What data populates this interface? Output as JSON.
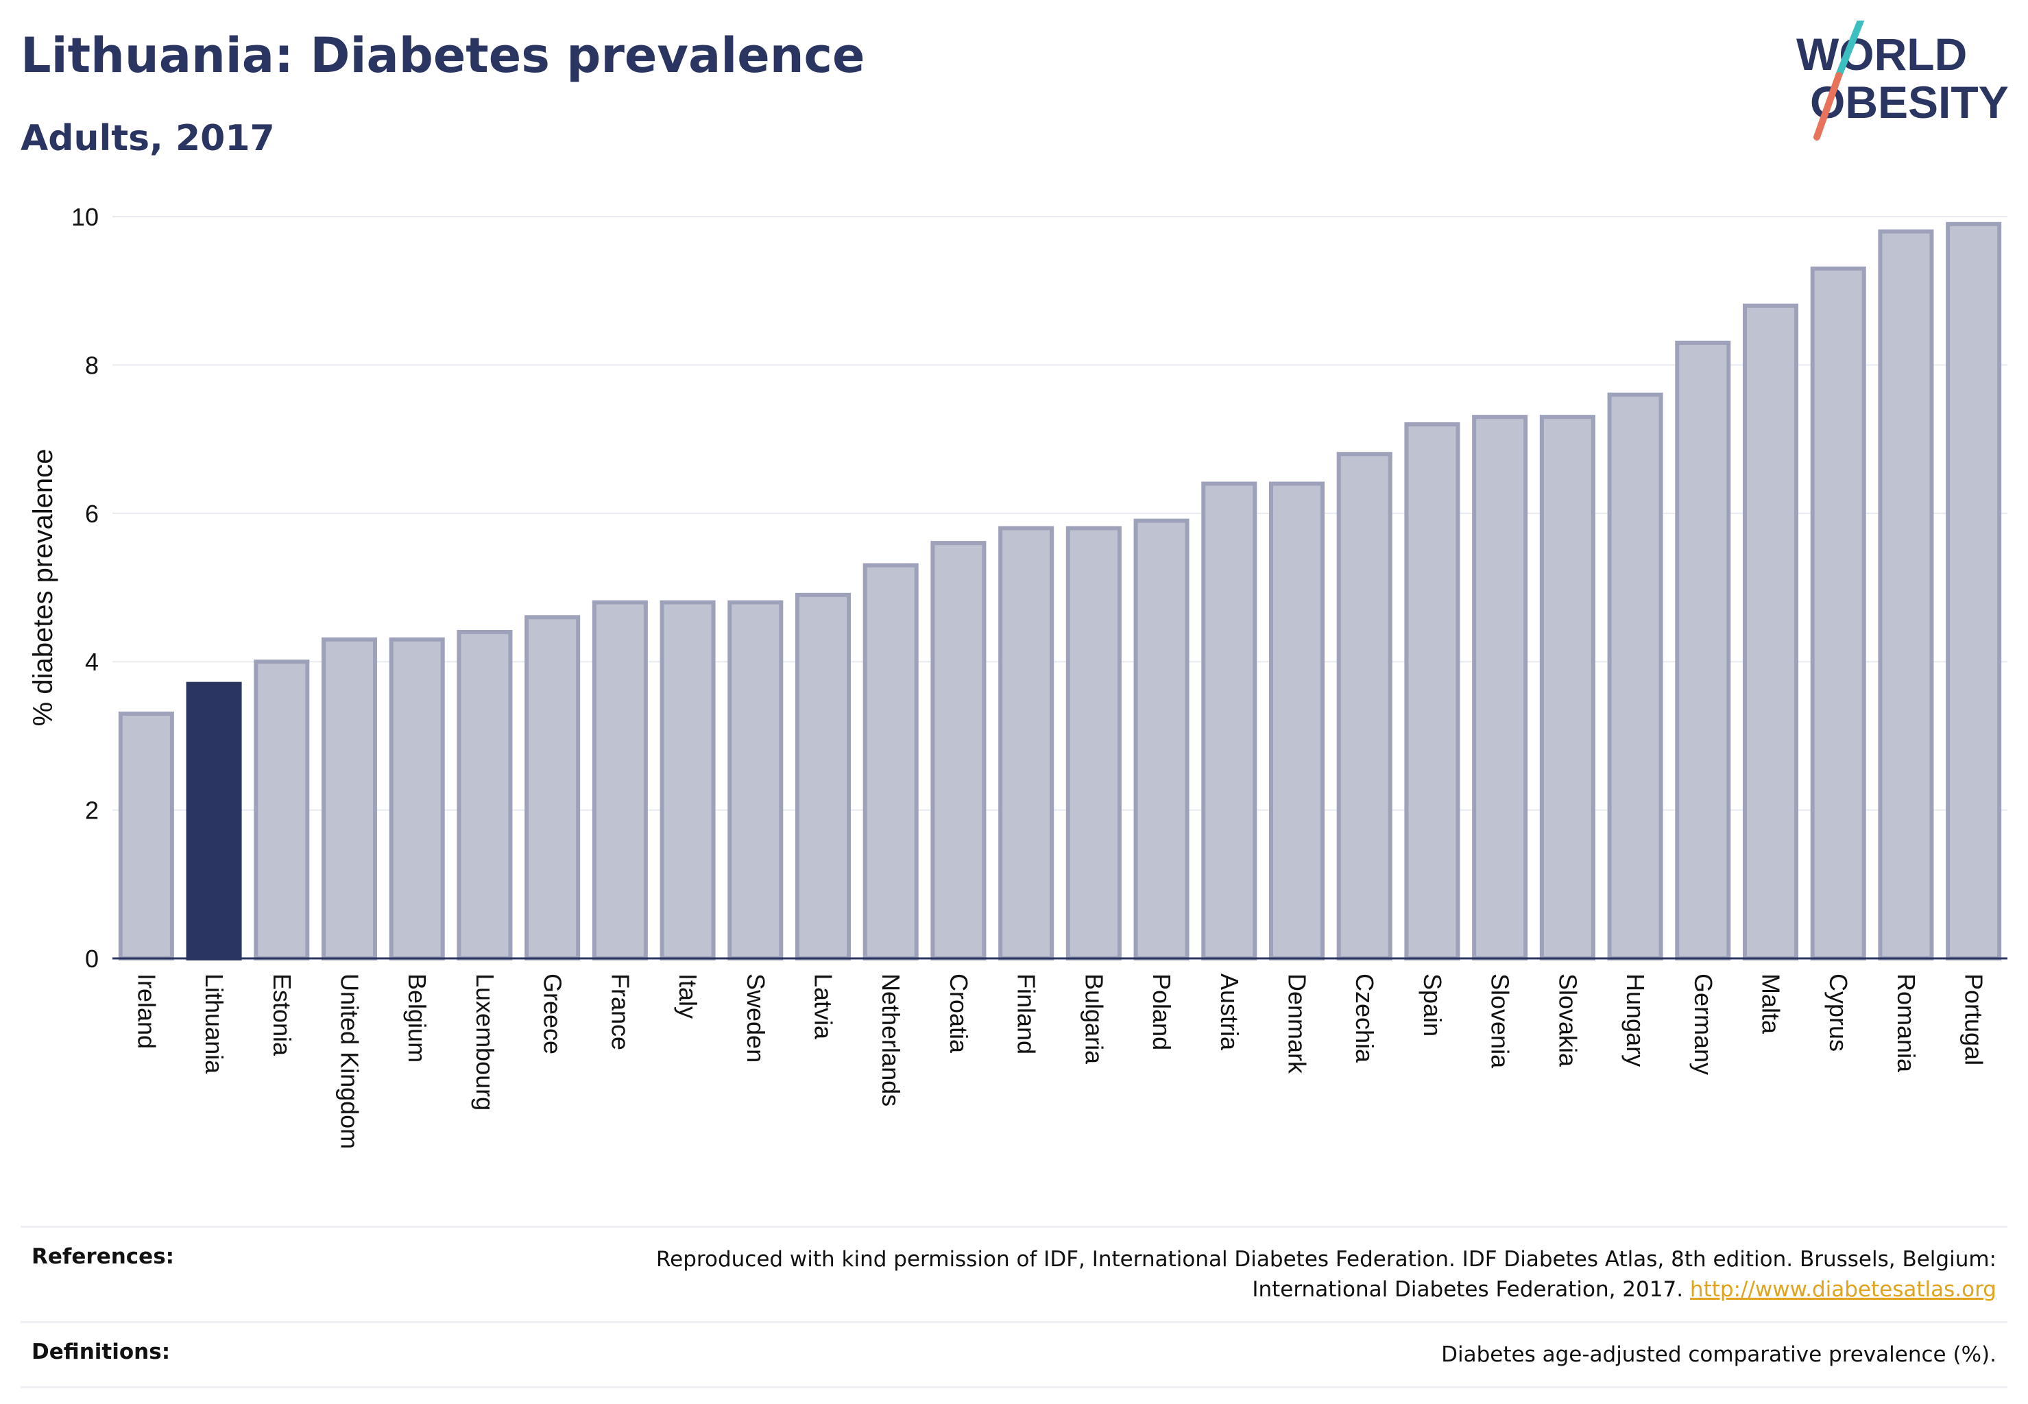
{
  "header": {
    "title": "Lithuania: Diabetes prevalence",
    "subtitle": "Adults, 2017"
  },
  "logo": {
    "line1": "WORLD",
    "line2": "OBESITY",
    "colors": {
      "text": "#2b3561",
      "slash_teal": "#3bbfbf",
      "slash_coral": "#e8735a"
    }
  },
  "chart_data": {
    "type": "bar",
    "ylabel": "% diabetes prevalence",
    "xlabel": "",
    "ylim": [
      0,
      10
    ],
    "yticks": [
      0,
      2,
      4,
      6,
      8,
      10
    ],
    "grid": true,
    "highlight": "Lithuania",
    "colors": {
      "bar": "#bfc2d0",
      "bar_edge": "#9da2ba",
      "highlight": "#2b3561",
      "axis": "#2b3561",
      "grid": "#e8eaf0"
    },
    "categories": [
      "Ireland",
      "Lithuania",
      "Estonia",
      "United Kingdom",
      "Belgium",
      "Luxembourg",
      "Greece",
      "France",
      "Italy",
      "Sweden",
      "Latvia",
      "Netherlands",
      "Croatia",
      "Finland",
      "Bulgaria",
      "Poland",
      "Austria",
      "Denmark",
      "Czechia",
      "Spain",
      "Slovenia",
      "Slovakia",
      "Hungary",
      "Germany",
      "Malta",
      "Cyprus",
      "Romania",
      "Portugal"
    ],
    "values": [
      3.3,
      3.7,
      4.0,
      4.3,
      4.3,
      4.4,
      4.6,
      4.8,
      4.8,
      4.8,
      4.9,
      5.3,
      5.6,
      5.8,
      5.8,
      5.9,
      6.4,
      6.4,
      6.8,
      7.2,
      7.3,
      7.3,
      7.6,
      8.3,
      8.8,
      9.3,
      9.8,
      9.9
    ]
  },
  "references": {
    "label": "References:",
    "text": "Reproduced with kind permission of IDF, International Diabetes Federation. IDF Diabetes Atlas, 8th edition. Brussels, Belgium: International Diabetes Federation, 2017.",
    "link": "http://www.diabetesatlas.org"
  },
  "definitions": {
    "label": "Definitions:",
    "text": "Diabetes age-adjusted comparative prevalence (%)."
  }
}
